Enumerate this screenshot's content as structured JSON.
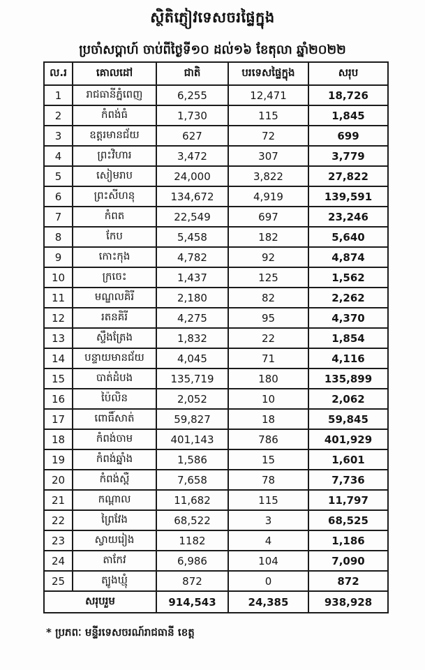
{
  "page": {
    "title": "ស្ថិតិភ្ញៀវទេសចរផ្ទៃក្នុង",
    "subtitle": "ប្រចាំសប្តាហ៍ ចាប់ពីថ្ងៃទី១០ ដល់១៦ ខែតុលា ឆ្នាំ២០២២",
    "footnote": "* ប្រភពៈ មន្ទីរទេសចរណ៍រាជធានី ខេត្ត"
  },
  "table": {
    "headers": {
      "no": "ល.រ",
      "destination": "គោលដៅ",
      "national": "ជាតិ",
      "foreign": "បរទេសផ្ទៃក្នុង",
      "total": "សរុប"
    },
    "rows": [
      {
        "no": "1",
        "destination": "រាជធានីភ្នំពេញ",
        "national": "6,255",
        "foreign": "12,471",
        "total": "18,726"
      },
      {
        "no": "2",
        "destination": "កំពង់ធំ",
        "national": "1,730",
        "foreign": "115",
        "total": "1,845"
      },
      {
        "no": "3",
        "destination": "ឧត្តរមានជ័យ",
        "national": "627",
        "foreign": "72",
        "total": "699"
      },
      {
        "no": "4",
        "destination": "ព្រះវិហារ",
        "national": "3,472",
        "foreign": "307",
        "total": "3,779"
      },
      {
        "no": "5",
        "destination": "សៀមរាប",
        "national": "24,000",
        "foreign": "3,822",
        "total": "27,822"
      },
      {
        "no": "6",
        "destination": "ព្រះសីហនុ",
        "national": "134,672",
        "foreign": "4,919",
        "total": "139,591"
      },
      {
        "no": "7",
        "destination": "កំពត",
        "national": "22,549",
        "foreign": "697",
        "total": "23,246"
      },
      {
        "no": "8",
        "destination": "កែប",
        "national": "5,458",
        "foreign": "182",
        "total": "5,640"
      },
      {
        "no": "9",
        "destination": "កោះកុង",
        "national": "4,782",
        "foreign": "92",
        "total": "4,874"
      },
      {
        "no": "10",
        "destination": "ក្រចេះ",
        "national": "1,437",
        "foreign": "125",
        "total": "1,562"
      },
      {
        "no": "11",
        "destination": "មណ្ឌលគិរី",
        "national": "2,180",
        "foreign": "82",
        "total": "2,262"
      },
      {
        "no": "12",
        "destination": "រតនគិរី",
        "national": "4,275",
        "foreign": "95",
        "total": "4,370"
      },
      {
        "no": "13",
        "destination": "ស្ទឹងត្រែង",
        "national": "1,832",
        "foreign": "22",
        "total": "1,854"
      },
      {
        "no": "14",
        "destination": "បន្ទាយមានជ័យ",
        "national": "4,045",
        "foreign": "71",
        "total": "4,116"
      },
      {
        "no": "15",
        "destination": "បាត់ដំបង",
        "national": "135,719",
        "foreign": "180",
        "total": "135,899"
      },
      {
        "no": "16",
        "destination": "ប៉ៃលិន",
        "national": "2,052",
        "foreign": "10",
        "total": "2,062"
      },
      {
        "no": "17",
        "destination": "ពោធិ៍សាត់",
        "national": "59,827",
        "foreign": "18",
        "total": "59,845"
      },
      {
        "no": "18",
        "destination": "កំពង់ចាម",
        "national": "401,143",
        "foreign": "786",
        "total": "401,929"
      },
      {
        "no": "19",
        "destination": "កំពង់ឆ្នាំង",
        "national": "1,586",
        "foreign": "15",
        "total": "1,601"
      },
      {
        "no": "20",
        "destination": "កំពង់ស្ពឺ",
        "national": "7,658",
        "foreign": "78",
        "total": "7,736"
      },
      {
        "no": "21",
        "destination": "កណ្តាល",
        "national": "11,682",
        "foreign": "115",
        "total": "11,797"
      },
      {
        "no": "22",
        "destination": "ព្រៃវែង",
        "national": "68,522",
        "foreign": "3",
        "total": "68,525"
      },
      {
        "no": "23",
        "destination": "ស្វាយរៀង",
        "national": "1182",
        "foreign": "4",
        "total": "1,186"
      },
      {
        "no": "24",
        "destination": "តាកែវ",
        "national": "6,986",
        "foreign": "104",
        "total": "7,090"
      },
      {
        "no": "25",
        "destination": "ត្បូងឃ្មុំ",
        "national": "872",
        "foreign": "0",
        "total": "872"
      }
    ],
    "total_row": {
      "label": "សរុបរួម",
      "national": "914,543",
      "foreign": "24,385",
      "total": "938,928"
    }
  },
  "colors": {
    "text": "#161616",
    "border": "#1b1b1b",
    "background": "#fdfdfd"
  }
}
